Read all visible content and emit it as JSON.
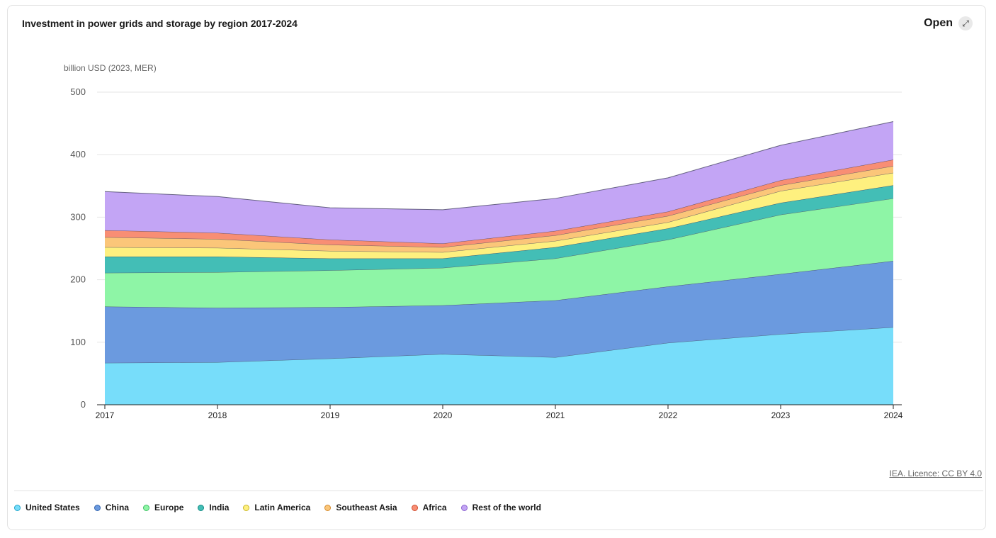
{
  "header": {
    "title": "Investment in power grids and storage by region 2017-2024",
    "open_label": "Open",
    "open_icon": "expand-arrows-icon"
  },
  "footer": {
    "licence": "IEA. Licence: CC BY 4.0"
  },
  "chart_data": {
    "type": "area",
    "stacked": true,
    "title": "Investment in power grids and storage by region 2017-2024",
    "ylabel": "billion USD (2023, MER)",
    "xlabel": "",
    "ylim": [
      0,
      500
    ],
    "yticks": [
      0,
      100,
      200,
      300,
      400,
      500
    ],
    "categories": [
      "2017",
      "2018",
      "2019",
      "2020",
      "2021",
      "2022",
      "2023",
      "2024"
    ],
    "grid": true,
    "legend_position": "bottom",
    "series": [
      {
        "name": "United States",
        "color": "#77ddfa",
        "values": [
          67,
          68,
          74,
          81,
          76,
          99,
          113,
          124
        ]
      },
      {
        "name": "China",
        "color": "#6b9adf",
        "values": [
          90,
          87,
          82,
          78,
          91,
          90,
          96,
          106
        ]
      },
      {
        "name": "Europe",
        "color": "#8ef5a6",
        "values": [
          54,
          57,
          59,
          60,
          67,
          75,
          95,
          100
        ]
      },
      {
        "name": "India",
        "color": "#43beb6",
        "values": [
          26,
          25,
          19,
          15,
          18,
          18,
          19,
          21
        ]
      },
      {
        "name": "Latin America",
        "color": "#fef07f",
        "values": [
          15,
          14,
          12,
          10,
          10,
          10,
          19,
          20
        ]
      },
      {
        "name": "Southeast Asia",
        "color": "#fbc679",
        "values": [
          16,
          14,
          10,
          8,
          9,
          10,
          9,
          11
        ]
      },
      {
        "name": "Africa",
        "color": "#f88e74",
        "values": [
          11,
          10,
          8,
          6,
          7,
          7,
          8,
          10
        ]
      },
      {
        "name": "Rest of the world",
        "color": "#c3a5f5",
        "values": [
          62,
          58,
          51,
          54,
          52,
          54,
          56,
          61
        ]
      }
    ],
    "legend_dot_borders": [
      "#22a6cc",
      "#3566b0",
      "#3fc064",
      "#118a82",
      "#c9b625",
      "#d48b2e",
      "#cf4c2e",
      "#8c63cf"
    ]
  }
}
